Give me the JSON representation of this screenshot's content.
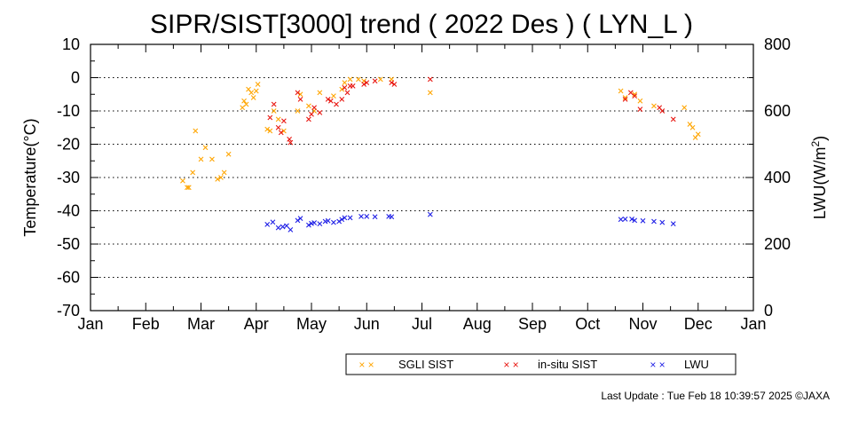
{
  "chart_data": {
    "type": "scatter",
    "title": "SIPR/SIST[3000] trend ( 2022 Des ) ( LYN_L )",
    "xlabel": "",
    "ylabel": "Temperature(°C)",
    "y2label_main": "LWU(W/m",
    "y2label_sup": "2",
    "y2label_end": ")",
    "x_tick_labels": [
      "Jan",
      "Feb",
      "Mar",
      "Apr",
      "May",
      "Jun",
      "Jul",
      "Aug",
      "Sep",
      "Oct",
      "Nov",
      "Dec",
      "Jan"
    ],
    "ylim": [
      -70,
      10
    ],
    "y_ticks": [
      10,
      0,
      -10,
      -20,
      -30,
      -40,
      -50,
      -60,
      -70
    ],
    "y2lim": [
      0,
      800
    ],
    "y2_ticks": [
      800,
      600,
      400,
      200,
      0
    ],
    "grid": "horizontal dotted",
    "legend_placement": "bottom-center",
    "series": [
      {
        "name": "SGLI SIST",
        "color": "#ffa500",
        "axis": "left",
        "points": [
          [
            1.67,
            -31
          ],
          [
            1.75,
            -33
          ],
          [
            1.78,
            -33
          ],
          [
            1.85,
            -28.5
          ],
          [
            1.9,
            -16
          ],
          [
            2.0,
            -24.5
          ],
          [
            2.08,
            -21
          ],
          [
            2.2,
            -24.5
          ],
          [
            2.3,
            -30.5
          ],
          [
            2.36,
            -30
          ],
          [
            2.42,
            -28.5
          ],
          [
            2.5,
            -23
          ],
          [
            2.75,
            -9
          ],
          [
            2.78,
            -7
          ],
          [
            2.82,
            -8
          ],
          [
            2.86,
            -3.5
          ],
          [
            2.91,
            -4.5
          ],
          [
            2.95,
            -6
          ],
          [
            3.0,
            -4
          ],
          [
            3.03,
            -2
          ],
          [
            3.2,
            -15.5
          ],
          [
            3.25,
            -16
          ],
          [
            3.32,
            -10
          ],
          [
            3.4,
            -12.5
          ],
          [
            3.5,
            -16
          ],
          [
            3.75,
            -10
          ],
          [
            3.8,
            -5
          ],
          [
            3.95,
            -8.5
          ],
          [
            4.05,
            -10
          ],
          [
            4.15,
            -4.5
          ],
          [
            4.4,
            -5.5
          ],
          [
            4.55,
            -3.5
          ],
          [
            4.6,
            -1.5
          ],
          [
            4.7,
            -0.5
          ],
          [
            4.85,
            -0.5
          ],
          [
            4.95,
            -1
          ],
          [
            5.25,
            -0.5
          ],
          [
            5.45,
            -0.5
          ],
          [
            6.15,
            -4.5
          ],
          [
            9.6,
            -4
          ],
          [
            9.68,
            -6
          ],
          [
            9.85,
            -5
          ],
          [
            9.95,
            -7
          ],
          [
            10.2,
            -8.5
          ],
          [
            10.75,
            -9
          ],
          [
            10.85,
            -14
          ],
          [
            10.9,
            -15
          ],
          [
            10.95,
            -18
          ],
          [
            11.0,
            -17
          ]
        ]
      },
      {
        "name": "in-situ SIST",
        "color": "#e8140e",
        "axis": "left",
        "points": [
          [
            3.25,
            -12
          ],
          [
            3.32,
            -8
          ],
          [
            3.4,
            -15
          ],
          [
            3.45,
            -16.5
          ],
          [
            3.5,
            -13
          ],
          [
            3.6,
            -18.5
          ],
          [
            3.62,
            -19.5
          ],
          [
            3.75,
            -4.5
          ],
          [
            3.8,
            -6.5
          ],
          [
            3.95,
            -12.5
          ],
          [
            4.0,
            -11
          ],
          [
            4.05,
            -9
          ],
          [
            4.15,
            -10.5
          ],
          [
            4.3,
            -6.5
          ],
          [
            4.35,
            -7
          ],
          [
            4.45,
            -8
          ],
          [
            4.55,
            -6.5
          ],
          [
            4.6,
            -3
          ],
          [
            4.65,
            -4.5
          ],
          [
            4.7,
            -2.5
          ],
          [
            4.75,
            -2.5
          ],
          [
            4.95,
            -2
          ],
          [
            5.0,
            -1.5
          ],
          [
            5.15,
            -1
          ],
          [
            5.45,
            -1.5
          ],
          [
            5.5,
            -2
          ],
          [
            6.15,
            -0.5
          ],
          [
            9.68,
            -6.5
          ],
          [
            9.78,
            -4.5
          ],
          [
            9.85,
            -5.5
          ],
          [
            9.95,
            -9.5
          ],
          [
            10.3,
            -9
          ],
          [
            10.35,
            -10
          ],
          [
            10.55,
            -12.5
          ]
        ]
      },
      {
        "name": "LWU",
        "color": "#1e1ee6",
        "axis": "right",
        "points": [
          [
            3.2,
            259
          ],
          [
            3.3,
            266
          ],
          [
            3.4,
            249
          ],
          [
            3.48,
            252
          ],
          [
            3.55,
            255
          ],
          [
            3.62,
            243
          ],
          [
            3.75,
            271
          ],
          [
            3.8,
            277
          ],
          [
            3.95,
            257
          ],
          [
            4.0,
            262
          ],
          [
            4.05,
            264
          ],
          [
            4.15,
            261
          ],
          [
            4.25,
            268
          ],
          [
            4.3,
            270
          ],
          [
            4.4,
            265
          ],
          [
            4.5,
            268
          ],
          [
            4.55,
            274
          ],
          [
            4.6,
            279
          ],
          [
            4.7,
            279
          ],
          [
            4.9,
            283
          ],
          [
            5.0,
            283
          ],
          [
            5.15,
            282
          ],
          [
            5.4,
            283
          ],
          [
            5.45,
            282
          ],
          [
            6.15,
            289
          ],
          [
            9.6,
            274
          ],
          [
            9.68,
            275
          ],
          [
            9.8,
            275
          ],
          [
            9.85,
            271
          ],
          [
            10.0,
            270
          ],
          [
            10.2,
            268
          ],
          [
            10.35,
            265
          ],
          [
            10.55,
            261
          ]
        ]
      }
    ]
  },
  "legend": {
    "items": [
      {
        "label": "SGLI SIST",
        "marker": "× ×",
        "color": "#ffa500"
      },
      {
        "label": "in-situ SIST",
        "marker": "× ×",
        "color": "#e8140e"
      },
      {
        "label": "LWU",
        "marker": "× ×",
        "color": "#1e1ee6"
      }
    ]
  },
  "footer": {
    "last_update": "Last Update : Tue Feb 18 10:39:57 2025  ©JAXA"
  }
}
